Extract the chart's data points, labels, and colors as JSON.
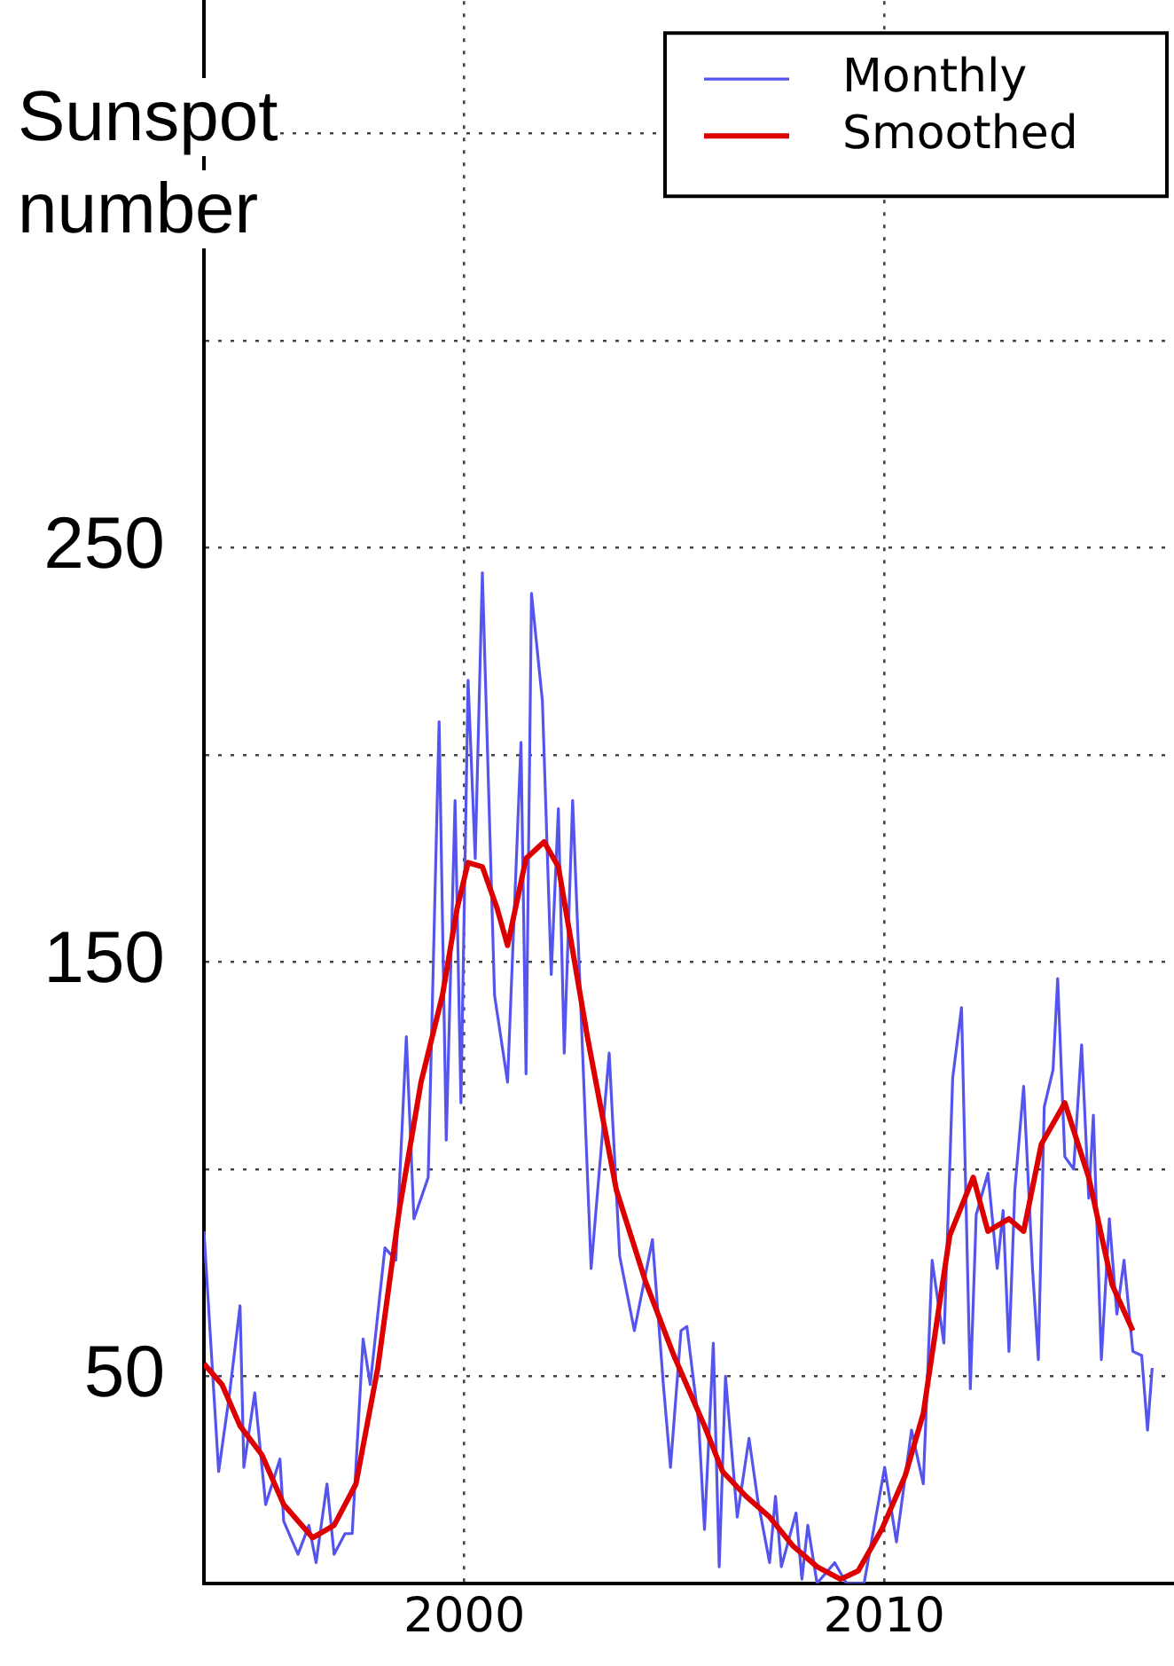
{
  "chart_data": {
    "type": "line",
    "ylabel": "Sunspot number",
    "xlim": [
      1993.8,
      2016.9
    ],
    "ylim": [
      0,
      382
    ],
    "xticks": [
      2000,
      2010
    ],
    "yticks": [
      {
        "value": 0,
        "label": null
      },
      50,
      {
        "value": 100,
        "label": null
      },
      150,
      {
        "value": 200,
        "label": null
      },
      250,
      {
        "value": 300,
        "label": null
      },
      {
        "value": 350,
        "label": null
      }
    ],
    "grid": true,
    "legend": "top right",
    "marker": "none",
    "line_style": "solid",
    "series": [
      {
        "name": "Monthly",
        "color": "#5555ee",
        "x": [
          1993.8,
          1994.15,
          1994.4,
          1994.66,
          1994.75,
          1995.01,
          1995.27,
          1995.61,
          1995.7,
          1996.04,
          1996.3,
          1996.47,
          1996.73,
          1996.9,
          1997.16,
          1997.33,
          1997.59,
          1997.76,
          1998.11,
          1998.37,
          1998.62,
          1998.8,
          1999.14,
          1999.4,
          1999.57,
          1999.78,
          1999.92,
          2000.09,
          2000.26,
          2000.43,
          2000.72,
          2001.03,
          2001.35,
          2001.47,
          2001.6,
          2001.86,
          2002.07,
          2002.24,
          2002.38,
          2002.58,
          2003.02,
          2003.45,
          2003.7,
          2004.05,
          2004.48,
          2004.74,
          2004.91,
          2005.16,
          2005.3,
          2005.58,
          2005.72,
          2005.93,
          2006.07,
          2006.22,
          2006.5,
          2006.78,
          2006.99,
          2007.27,
          2007.41,
          2007.55,
          2007.9,
          2008.04,
          2008.18,
          2008.4,
          2008.82,
          2009.1,
          2009.52,
          2010.01,
          2010.29,
          2010.65,
          2010.93,
          2011.14,
          2011.42,
          2011.63,
          2011.84,
          2012.05,
          2012.19,
          2012.47,
          2012.69,
          2012.83,
          2012.97,
          2013.11,
          2013.32,
          2013.53,
          2013.67,
          2013.81,
          2014.02,
          2014.13,
          2014.3,
          2014.51,
          2014.7,
          2014.87,
          2014.98,
          2015.17,
          2015.36,
          2015.54,
          2015.71,
          2015.92,
          2016.13,
          2016.27,
          2016.38
        ],
        "values": [
          85,
          27,
          45,
          67,
          28,
          46,
          19,
          30,
          15,
          7,
          14,
          5,
          24,
          7,
          12,
          12,
          59,
          48,
          81,
          78,
          132,
          88,
          98,
          208,
          107,
          189,
          116,
          218,
          175,
          244,
          142,
          121,
          203,
          123,
          239,
          213,
          147,
          187,
          128,
          189,
          76,
          128,
          79,
          61,
          83,
          48,
          28,
          61,
          62,
          39,
          13,
          58,
          4,
          50,
          16,
          35,
          20,
          5,
          21,
          4,
          17,
          1,
          14,
          0,
          5,
          0,
          0,
          28,
          10,
          37,
          24,
          78,
          58,
          122,
          139,
          47,
          89,
          99,
          76,
          90,
          56,
          95,
          120,
          76,
          54,
          115,
          124,
          146,
          103,
          100,
          130,
          93,
          113,
          54,
          88,
          65,
          78,
          56,
          55,
          37,
          52
        ]
      },
      {
        "name": "Smoothed",
        "color": "#dd0000",
        "x": [
          1993.8,
          1994.23,
          1994.66,
          1995.18,
          1995.7,
          1996.39,
          1996.9,
          1997.42,
          1997.94,
          1998.45,
          1998.97,
          1999.48,
          1999.83,
          2000.09,
          2000.43,
          2000.78,
          2001.03,
          2001.47,
          2001.9,
          2002.24,
          2002.93,
          2003.62,
          2004.31,
          2004.99,
          2005.72,
          2006.15,
          2006.71,
          2007.27,
          2007.83,
          2008.4,
          2008.96,
          2009.38,
          2009.94,
          2010.5,
          2010.93,
          2011.28,
          2011.56,
          2012.12,
          2012.47,
          2012.97,
          2013.32,
          2013.74,
          2014.3,
          2014.87,
          2015.43,
          2015.92
        ],
        "values": [
          53,
          48,
          38,
          31,
          19,
          11,
          14,
          24,
          52,
          90,
          121,
          142,
          163,
          174,
          173,
          163,
          154,
          175,
          179,
          173,
          132,
          95,
          73,
          55,
          38,
          27,
          21,
          16,
          9,
          4,
          1,
          3,
          13,
          26,
          41,
          65,
          84,
          98,
          85,
          88,
          85,
          106,
          116,
          98,
          72,
          61
        ]
      }
    ]
  }
}
